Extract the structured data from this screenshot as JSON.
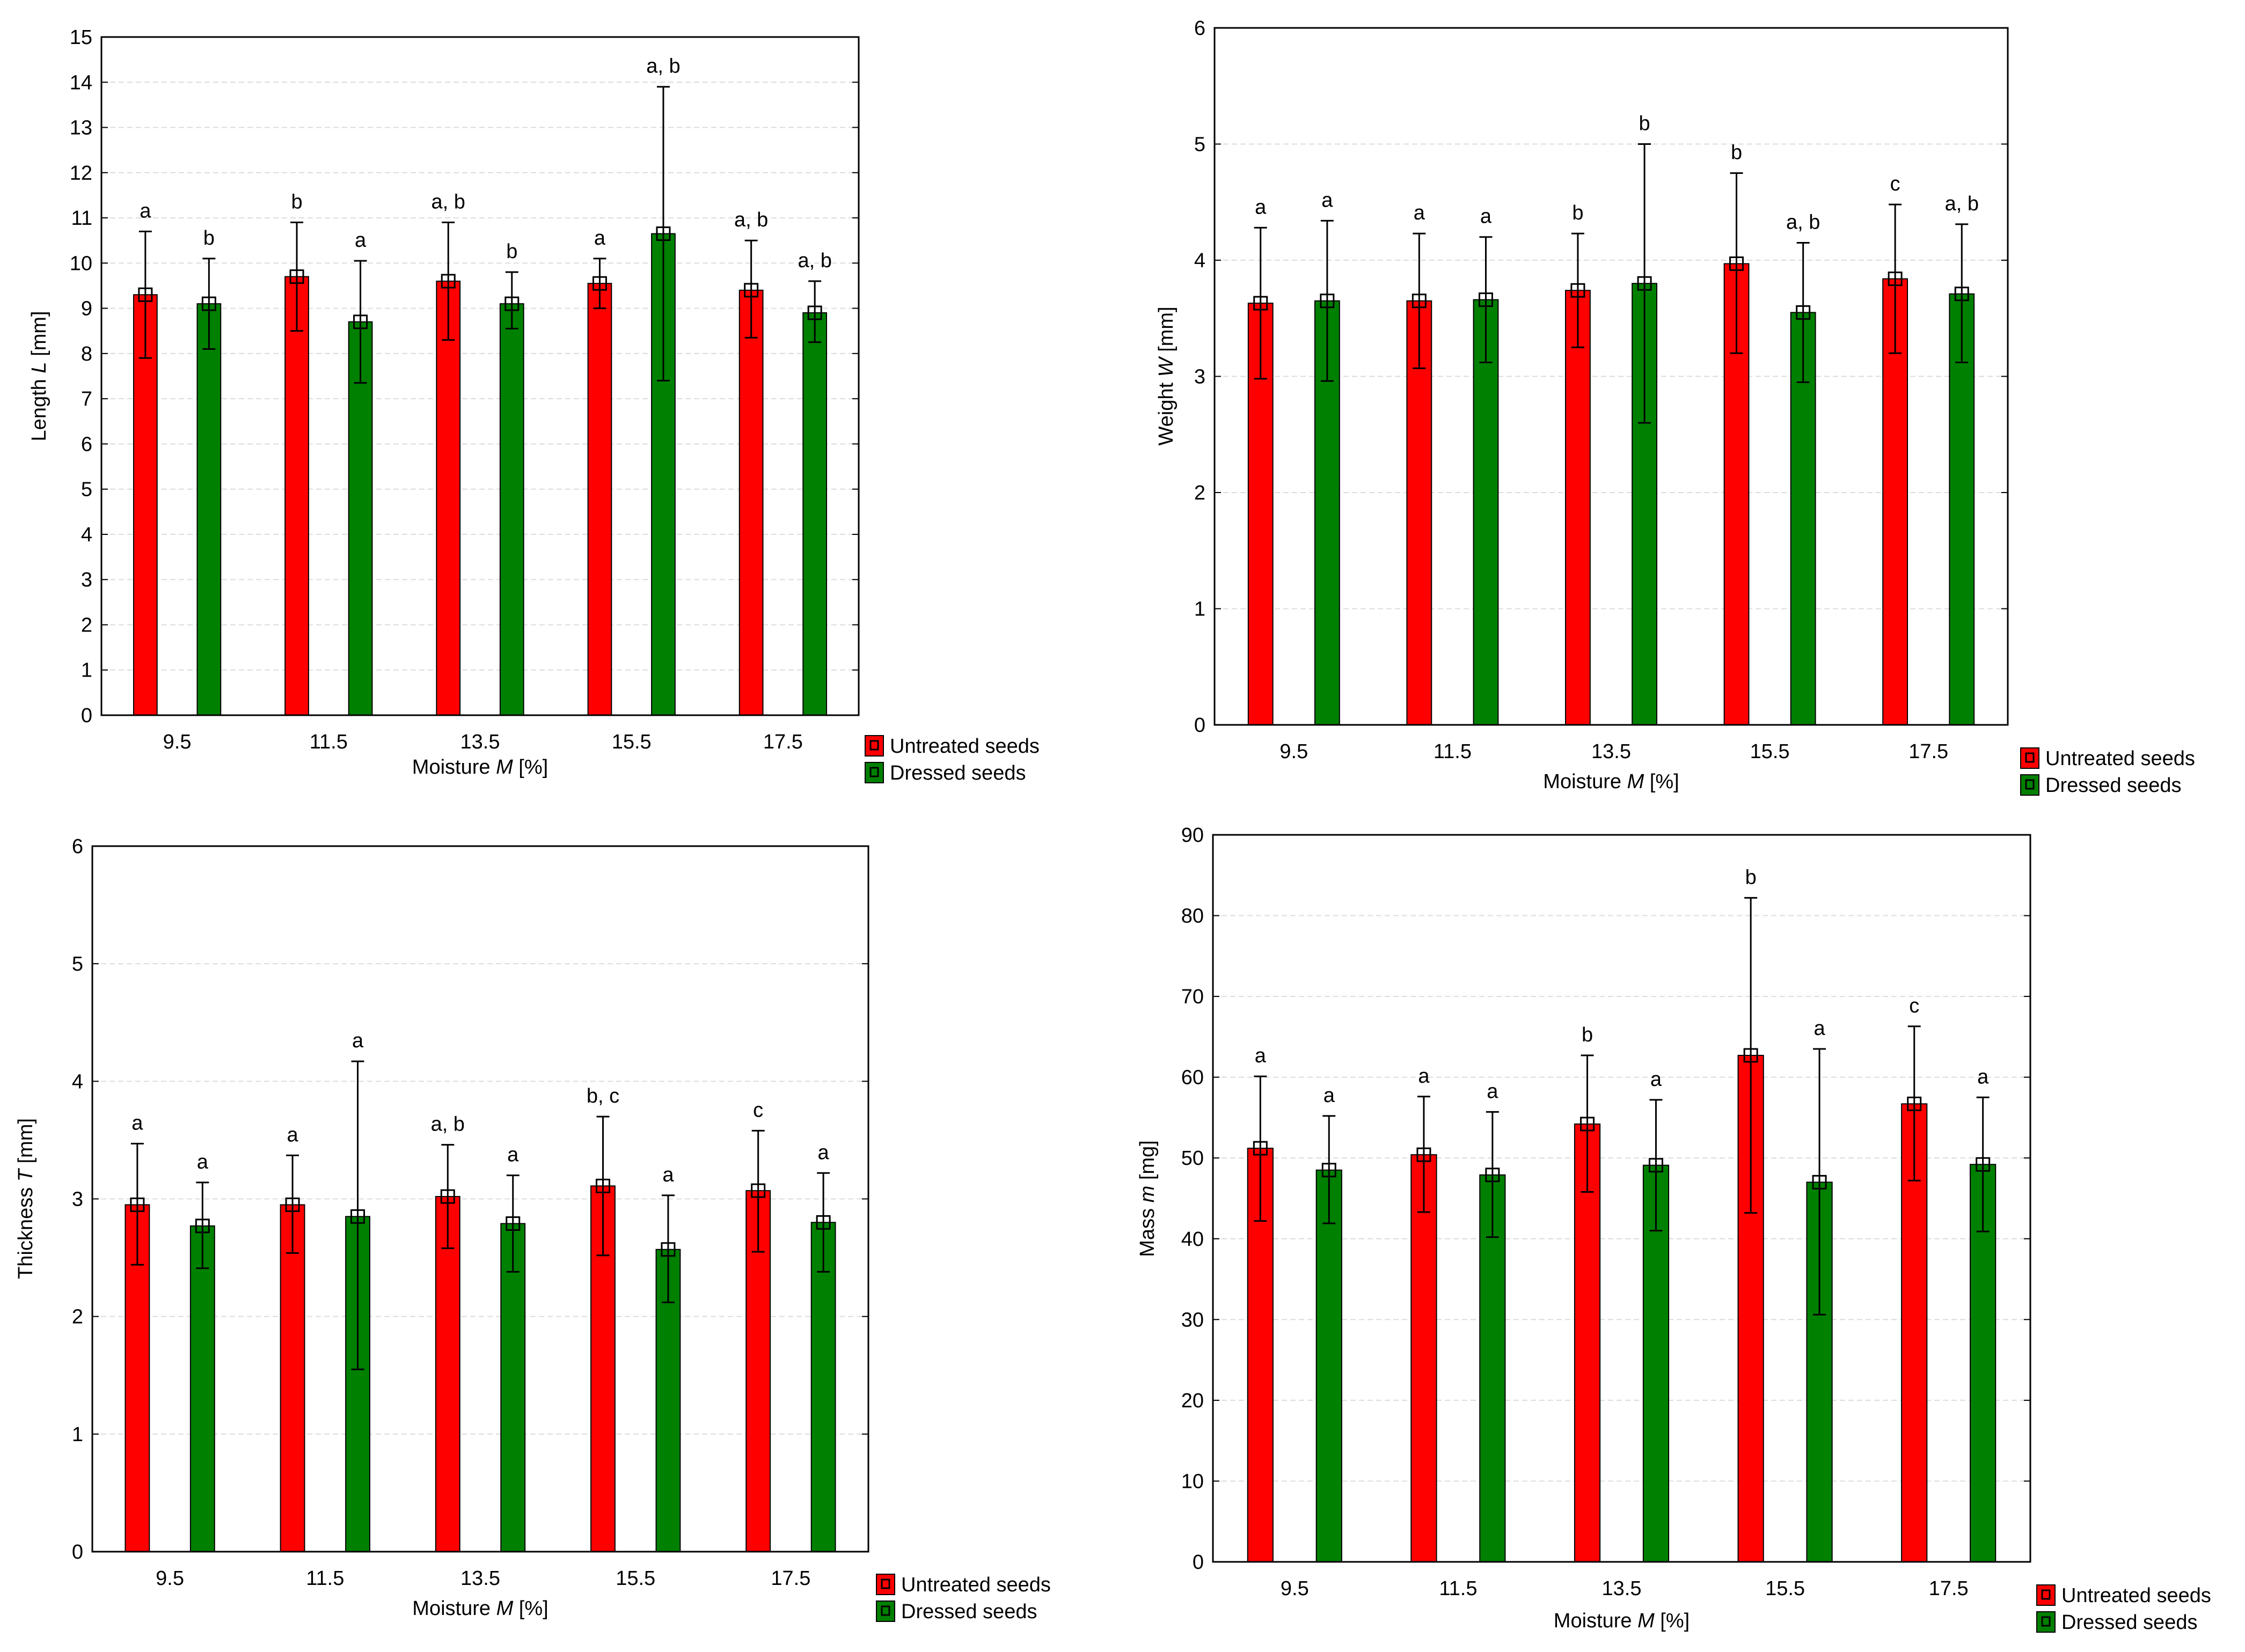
{
  "chart_data": [
    {
      "type": "bar",
      "ylabel_main": "Length ",
      "ylabel_var": "L",
      "ylabel_unit": " [mm]",
      "xlabel_main": "Moisture ",
      "xlabel_var": "M",
      "xlabel_unit": " [%]",
      "ylim": [
        0,
        15
      ],
      "yticks": [
        0,
        1,
        2,
        3,
        4,
        5,
        6,
        7,
        8,
        9,
        10,
        11,
        12,
        13,
        14,
        15
      ],
      "ytick_labels": [
        "0",
        "1",
        "2",
        "3",
        "4",
        "5",
        "6",
        "7",
        "8",
        "9",
        "10",
        "11",
        "12",
        "13",
        "14",
        "15"
      ],
      "categories": [
        "9.5",
        "11.5",
        "13.5",
        "15.5",
        "17.5"
      ],
      "grid": true,
      "legend_position": "bottom-right, outside",
      "series": [
        {
          "name": "Untreated seeds",
          "color": "#ff0000",
          "values": [
            9.3,
            9.7,
            9.6,
            9.55,
            9.4
          ],
          "err_low": [
            7.9,
            8.5,
            8.3,
            9.0,
            8.35
          ],
          "err_high": [
            10.7,
            10.9,
            10.9,
            10.1,
            10.5
          ],
          "letters": [
            "a",
            "b",
            "a, b",
            "a",
            "a, b"
          ]
        },
        {
          "name": "Dressed seeds",
          "color": "#008000",
          "values": [
            9.1,
            8.7,
            9.1,
            10.65,
            8.9
          ],
          "err_low": [
            8.1,
            7.35,
            8.55,
            7.4,
            8.25
          ],
          "err_high": [
            10.1,
            10.05,
            9.8,
            13.9,
            9.6
          ],
          "letters": [
            "b",
            "a",
            "b",
            "a, b",
            "a, b"
          ]
        }
      ]
    },
    {
      "type": "bar",
      "ylabel_main": "Weight ",
      "ylabel_var": "W",
      "ylabel_unit": " [mm]",
      "xlabel_main": "Moisture ",
      "xlabel_var": "M",
      "xlabel_unit": " [%]",
      "ylim": [
        0,
        6
      ],
      "yticks": [
        0,
        1,
        2,
        3,
        4,
        5,
        6
      ],
      "ytick_labels": [
        "0",
        "1",
        "2",
        "3",
        "4",
        "5",
        "6"
      ],
      "categories": [
        "9.5",
        "11.5",
        "13.5",
        "15.5",
        "17.5"
      ],
      "grid": true,
      "legend_position": "bottom-right, outside",
      "series": [
        {
          "name": "Untreated seeds",
          "color": "#ff0000",
          "values": [
            3.63,
            3.65,
            3.74,
            3.97,
            3.84
          ],
          "err_low": [
            2.98,
            3.07,
            3.25,
            3.2,
            3.2
          ],
          "err_high": [
            4.28,
            4.23,
            4.23,
            4.75,
            4.48
          ],
          "letters": [
            "a",
            "a",
            "b",
            "b",
            "c"
          ]
        },
        {
          "name": "Dressed seeds",
          "color": "#008000",
          "values": [
            3.65,
            3.66,
            3.8,
            3.55,
            3.71
          ],
          "err_low": [
            2.96,
            3.12,
            2.6,
            2.95,
            3.12
          ],
          "err_high": [
            4.34,
            4.2,
            5.0,
            4.15,
            4.31
          ],
          "letters": [
            "a",
            "a",
            "b",
            "a, b",
            "a, b"
          ]
        }
      ]
    },
    {
      "type": "bar",
      "ylabel_main": "Thickness ",
      "ylabel_var": "T",
      "ylabel_unit": " [mm]",
      "xlabel_main": "Moisture ",
      "xlabel_var": "M",
      "xlabel_unit": " [%]",
      "ylim": [
        0,
        6
      ],
      "yticks": [
        0,
        1,
        2,
        3,
        4,
        5,
        6
      ],
      "ytick_labels": [
        "0",
        "1",
        "2",
        "3",
        "4",
        "5",
        "6"
      ],
      "categories": [
        "9.5",
        "11.5",
        "13.5",
        "15.5",
        "17.5"
      ],
      "grid": true,
      "legend_position": "bottom-right, outside",
      "series": [
        {
          "name": "Untreated seeds",
          "color": "#ff0000",
          "values": [
            2.95,
            2.95,
            3.02,
            3.11,
            3.07
          ],
          "err_low": [
            2.44,
            2.54,
            2.58,
            2.52,
            2.55
          ],
          "err_high": [
            3.47,
            3.37,
            3.46,
            3.7,
            3.58
          ],
          "letters": [
            "a",
            "a",
            "a, b",
            "b, c",
            "c"
          ]
        },
        {
          "name": "Dressed seeds",
          "color": "#008000",
          "values": [
            2.77,
            2.85,
            2.79,
            2.57,
            2.8
          ],
          "err_low": [
            2.41,
            1.55,
            2.38,
            2.12,
            2.38
          ],
          "err_high": [
            3.14,
            4.17,
            3.2,
            3.03,
            3.22
          ],
          "letters": [
            "a",
            "a",
            "a",
            "a",
            "a"
          ]
        }
      ]
    },
    {
      "type": "bar",
      "ylabel_main": "Mass ",
      "ylabel_var": "m",
      "ylabel_unit": " [mg]",
      "xlabel_main": "Moisture ",
      "xlabel_var": "M",
      "xlabel_unit": " [%]",
      "ylim": [
        0,
        90
      ],
      "yticks": [
        0,
        10,
        20,
        30,
        40,
        50,
        60,
        70,
        80,
        90
      ],
      "ytick_labels": [
        "0",
        "10",
        "20",
        "30",
        "40",
        "50",
        "60",
        "70",
        "80",
        "90"
      ],
      "categories": [
        "9.5",
        "11.5",
        "13.5",
        "15.5",
        "17.5"
      ],
      "grid": true,
      "legend_position": "bottom-right, outside",
      "series": [
        {
          "name": "Untreated seeds",
          "color": "#ff0000",
          "values": [
            51.2,
            50.4,
            54.2,
            62.7,
            56.7
          ],
          "err_low": [
            42.2,
            43.3,
            45.8,
            43.2,
            47.2
          ],
          "err_high": [
            60.1,
            57.6,
            62.7,
            82.2,
            66.3
          ],
          "letters": [
            "a",
            "a",
            "b",
            "b",
            "c"
          ]
        },
        {
          "name": "Dressed seeds",
          "color": "#008000",
          "values": [
            48.5,
            47.9,
            49.1,
            47.0,
            49.2
          ],
          "err_low": [
            41.9,
            40.2,
            41.0,
            30.6,
            40.9
          ],
          "err_high": [
            55.2,
            55.7,
            57.2,
            63.5,
            57.5
          ],
          "letters": [
            "a",
            "a",
            "a",
            "a",
            "a"
          ]
        }
      ]
    }
  ]
}
